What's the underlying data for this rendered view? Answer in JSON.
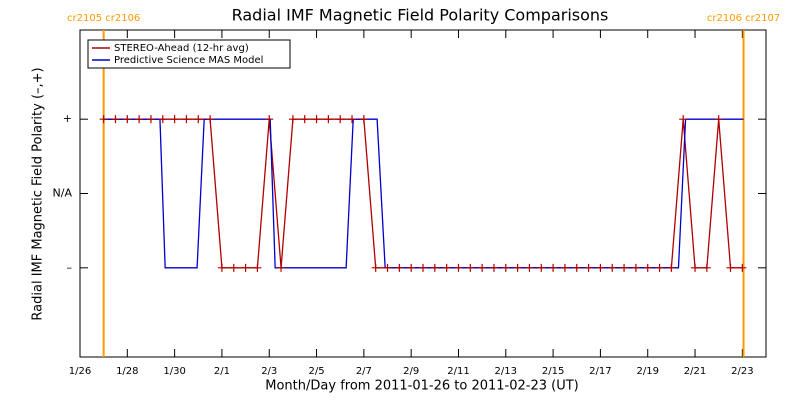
{
  "chart_data": {
    "type": "line",
    "title": "Radial IMF Magnetic Field Polarity Comparisons",
    "xlabel": "Month/Day from 2011-01-26 to 2011-02-23 (UT)",
    "ylabel": "Radial IMF Magnetic Field Polarity (–,+)",
    "xlim": [
      0,
      29
    ],
    "xticks": [
      {
        "value": 0,
        "label": "1/26"
      },
      {
        "value": 2,
        "label": "1/28"
      },
      {
        "value": 4,
        "label": "1/30"
      },
      {
        "value": 6,
        "label": "2/1"
      },
      {
        "value": 8,
        "label": "2/3"
      },
      {
        "value": 10,
        "label": "2/5"
      },
      {
        "value": 12,
        "label": "2/7"
      },
      {
        "value": 14,
        "label": "2/9"
      },
      {
        "value": 16,
        "label": "2/11"
      },
      {
        "value": 18,
        "label": "2/13"
      },
      {
        "value": 20,
        "label": "2/15"
      },
      {
        "value": 22,
        "label": "2/17"
      },
      {
        "value": 24,
        "label": "2/19"
      },
      {
        "value": 26,
        "label": "2/21"
      },
      {
        "value": 28,
        "label": "2/23"
      }
    ],
    "ylim": [
      -2.2,
      2.2
    ],
    "yticks": [
      {
        "value": 1,
        "label": "+"
      },
      {
        "value": 0,
        "label": "N/A"
      },
      {
        "value": -1,
        "label": "–"
      }
    ],
    "carrington_boundaries": [
      {
        "x": 1.0,
        "label": "cr2105 cr2106"
      },
      {
        "x": 28.05,
        "label": "cr2106 cr2107"
      }
    ],
    "boundary_color": "#ff9900",
    "legend": "upper left",
    "series": [
      {
        "name": "STEREO-Ahead (12-hr avg)",
        "color": "#b00000",
        "marker": "+",
        "x": [
          1,
          1.5,
          2,
          2.5,
          3,
          3.5,
          4,
          4.5,
          5,
          5.5,
          6,
          6.5,
          7,
          7.5,
          8,
          8.5,
          9,
          9.5,
          10,
          10.5,
          11,
          11.5,
          12,
          12.5,
          13,
          13.5,
          14,
          14.5,
          15,
          15.5,
          16,
          16.5,
          17,
          17.5,
          18,
          18.5,
          19,
          19.5,
          20,
          20.5,
          21,
          21.5,
          22,
          22.5,
          23,
          23.5,
          24,
          24.5,
          25,
          25.5,
          26,
          26.5,
          27,
          27.5,
          28
        ],
        "values": [
          1,
          1,
          1,
          1,
          1,
          1,
          1,
          1,
          1,
          1,
          -1,
          -1,
          -1,
          -1,
          1,
          -1,
          1,
          1,
          1,
          1,
          1,
          1,
          1,
          -1,
          -1,
          -1,
          -1,
          -1,
          -1,
          -1,
          -1,
          -1,
          -1,
          -1,
          -1,
          -1,
          -1,
          -1,
          -1,
          -1,
          -1,
          -1,
          -1,
          -1,
          -1,
          -1,
          -1,
          -1,
          -1,
          1,
          -1,
          -1,
          1,
          -1,
          -1
        ]
      },
      {
        "name": "Predictive Science MAS Model",
        "color": "#0000cc",
        "x": [
          1.0,
          3.38,
          3.6,
          4.95,
          5.25,
          8.04,
          8.25,
          11.25,
          11.55,
          12.56,
          12.9,
          25.3,
          25.6,
          28.05
        ],
        "values": [
          1,
          1,
          -1,
          -1,
          1,
          1,
          -1,
          -1,
          1,
          1,
          -1,
          -1,
          1,
          1
        ]
      }
    ]
  }
}
